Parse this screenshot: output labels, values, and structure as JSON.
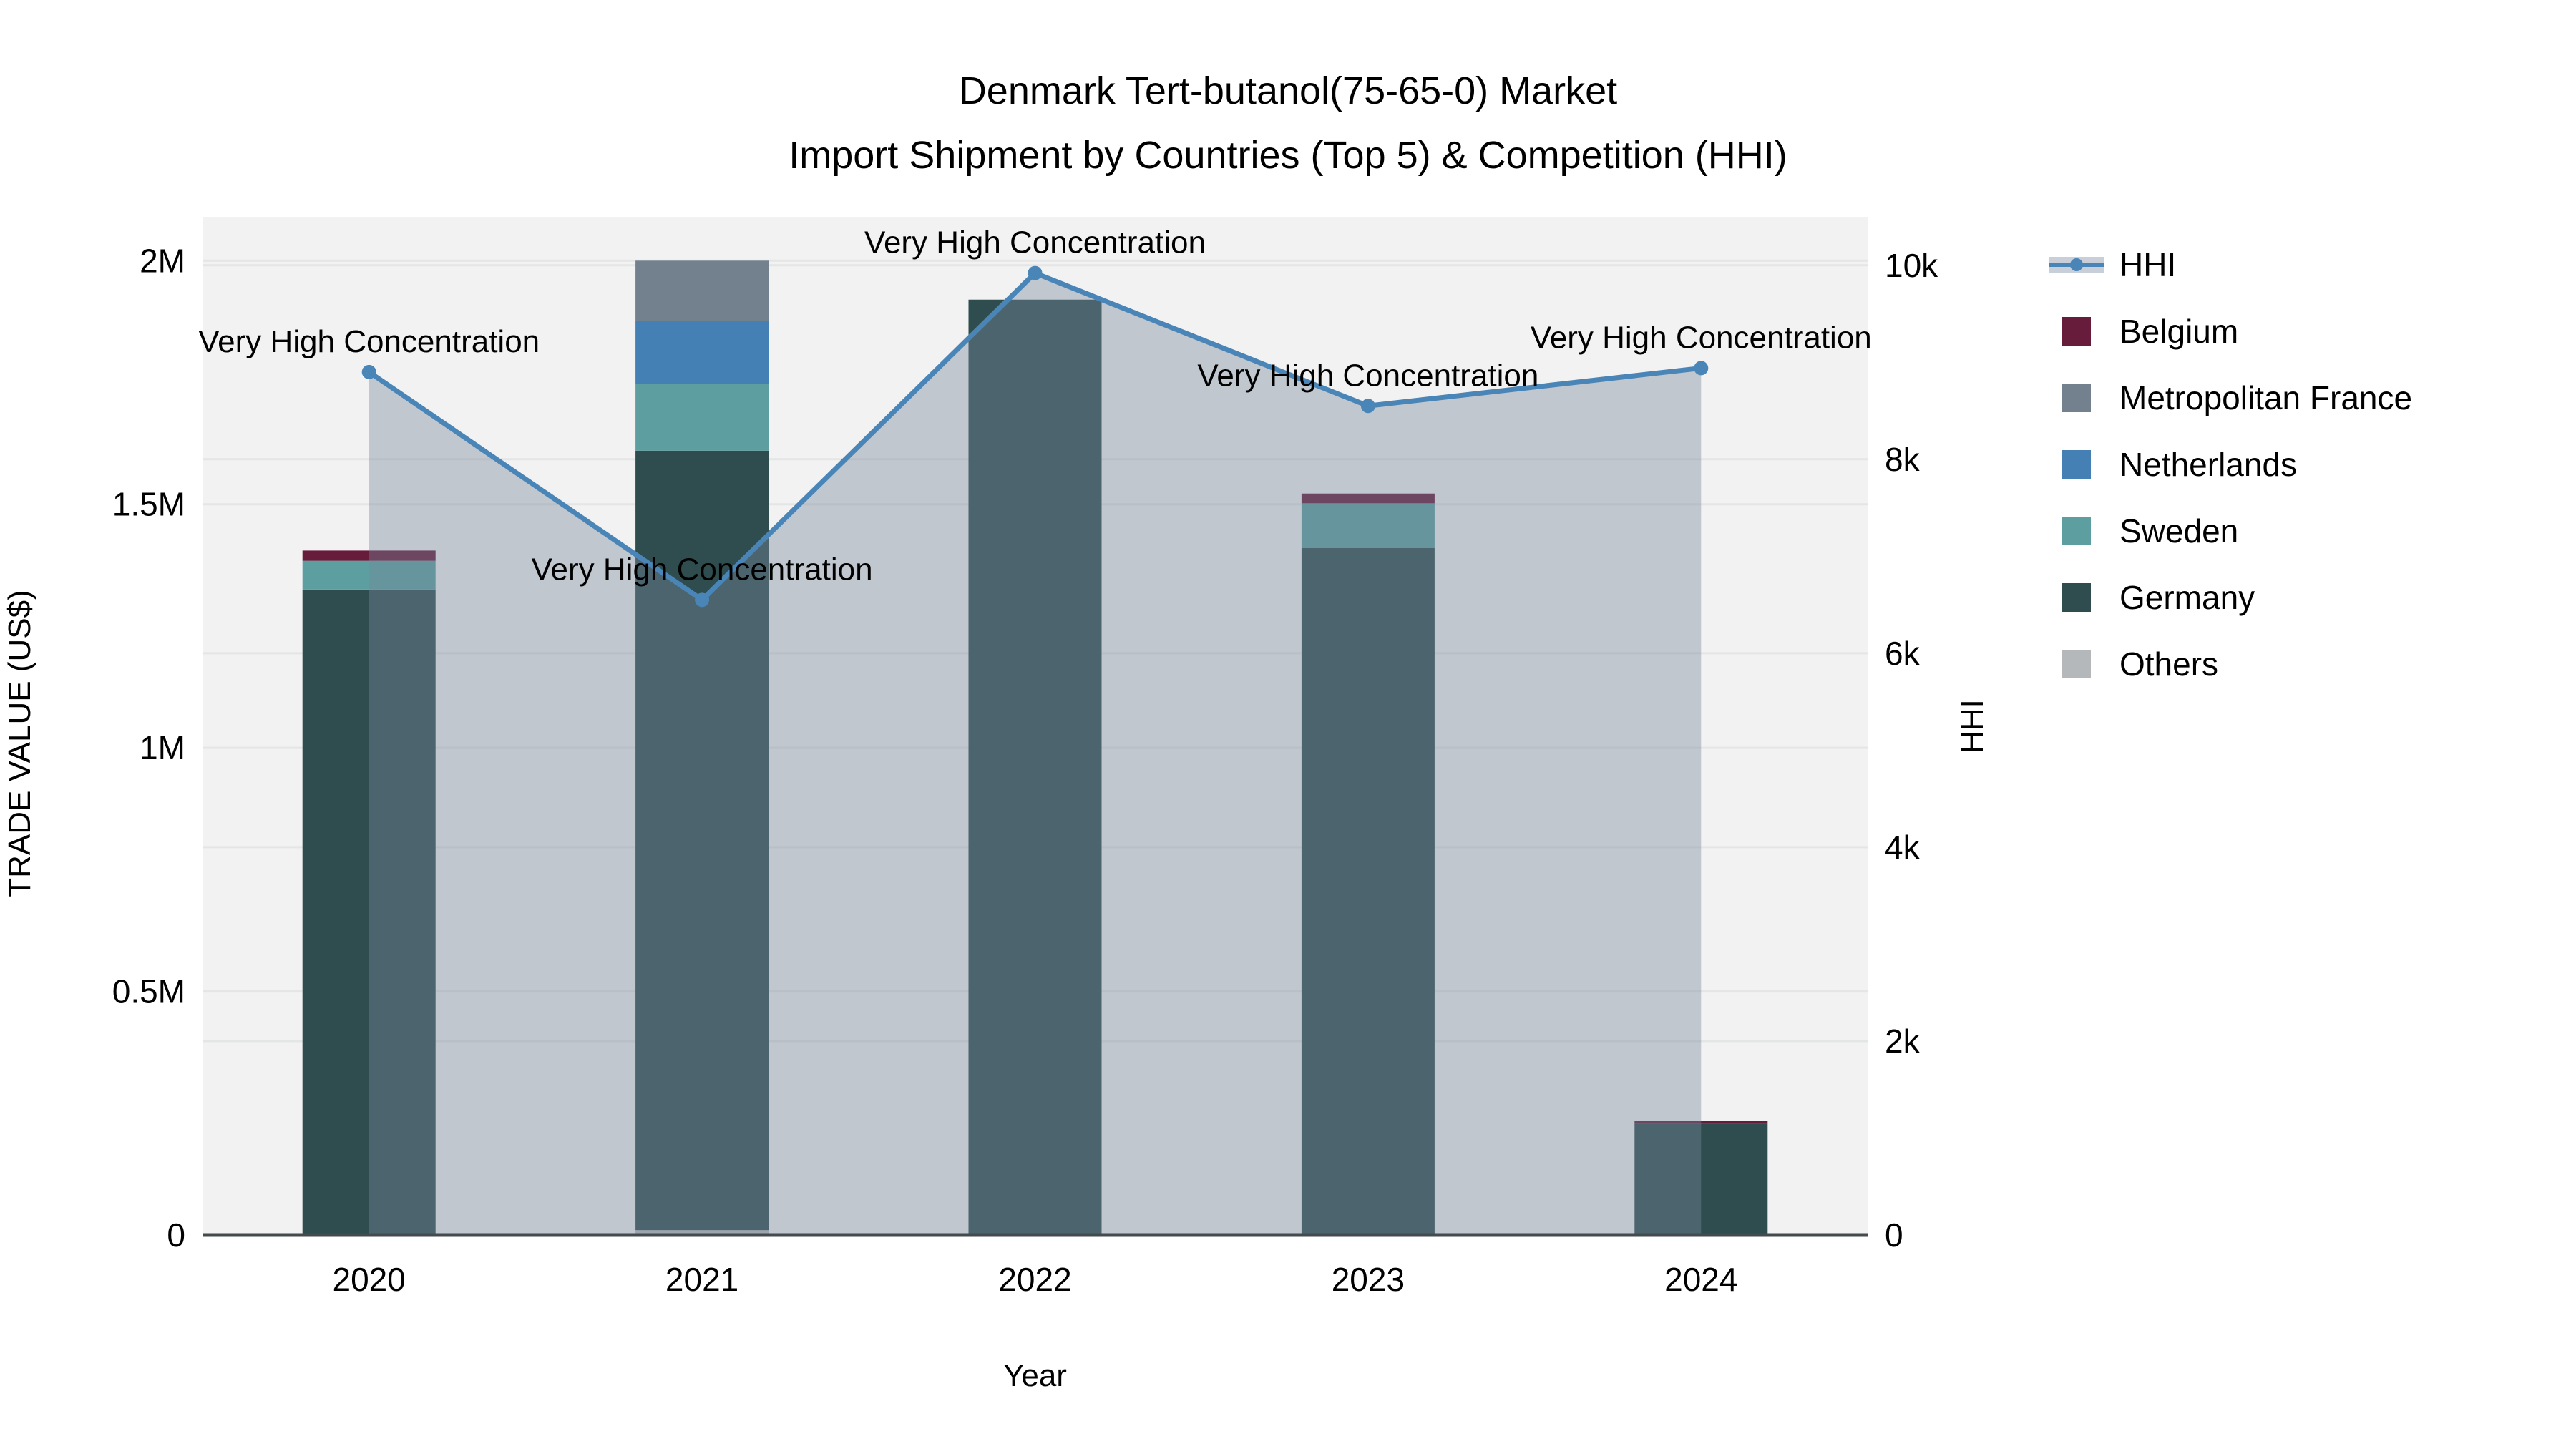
{
  "chart_data": {
    "type": "bar+line",
    "title_line1": "Denmark Tert-butanol(75-65-0) Market",
    "title_line2": "Import Shipment by Countries (Top 5) & Competition (HHI)",
    "xlabel": "Year",
    "ylabel_left": "TRADE VALUE (US$)",
    "ylabel_right": "HHI",
    "categories": [
      "2020",
      "2021",
      "2022",
      "2023",
      "2024"
    ],
    "bar_series": [
      {
        "name": "Others",
        "color": "#b5b8ba",
        "values": [
          0,
          10000,
          0,
          0,
          0
        ]
      },
      {
        "name": "Germany",
        "color": "#2f4d4f",
        "values": [
          1325000,
          1600000,
          1920000,
          1410000,
          228000
        ]
      },
      {
        "name": "Sweden",
        "color": "#5d9fa1",
        "values": [
          59000,
          137000,
          0,
          92000,
          0
        ]
      },
      {
        "name": "Netherlands",
        "color": "#4480b4",
        "values": [
          0,
          130000,
          0,
          0,
          0
        ]
      },
      {
        "name": "Metropolitan France",
        "color": "#73818f",
        "values": [
          0,
          123000,
          0,
          0,
          0
        ]
      },
      {
        "name": "Belgium",
        "color": "#671c3c",
        "values": [
          21000,
          0,
          0,
          20000,
          6000
        ]
      }
    ],
    "line_series": {
      "name": "HHI",
      "color": "#4a85b8",
      "fill_color": "rgba(119,134,155,0.40)",
      "values": [
        8900,
        6550,
        9920,
        8550,
        8940
      ]
    },
    "annotations": [
      {
        "category": "2020",
        "text": "Very High Concentration"
      },
      {
        "category": "2021",
        "text": "Very High Concentration"
      },
      {
        "category": "2022",
        "text": "Very High Concentration"
      },
      {
        "category": "2023",
        "text": "Very High Concentration"
      },
      {
        "category": "2024",
        "text": "Very High Concentration"
      }
    ],
    "left_axis": {
      "tick_labels": [
        "0",
        "0.5M",
        "1M",
        "1.5M",
        "2M"
      ],
      "tick_values": [
        0,
        500000,
        1000000,
        1500000,
        2000000
      ],
      "range": [
        0,
        2090000
      ]
    },
    "right_axis": {
      "tick_labels": [
        "0",
        "2k",
        "4k",
        "6k",
        "8k",
        "10k"
      ],
      "tick_values": [
        0,
        2000,
        4000,
        6000,
        8000,
        10000
      ],
      "range": [
        0,
        10500
      ]
    },
    "legend": [
      {
        "label": "HHI",
        "type": "line",
        "color": "#4a85b8",
        "band_color": "#c9cfd8"
      },
      {
        "label": "Belgium",
        "type": "square",
        "color": "#671c3c"
      },
      {
        "label": "Metropolitan France",
        "type": "square",
        "color": "#73818f"
      },
      {
        "label": "Netherlands",
        "type": "square",
        "color": "#4480b4"
      },
      {
        "label": "Sweden",
        "type": "square",
        "color": "#5d9fa1"
      },
      {
        "label": "Germany",
        "type": "square",
        "color": "#2f4d4f"
      },
      {
        "label": "Others",
        "type": "square",
        "color": "#b5b8ba"
      }
    ],
    "colors": {
      "plot_background": "#f2f2f2",
      "gridline": "#e4e5e5",
      "axis_line": "#444b4e",
      "text": "#000000"
    },
    "grid": true,
    "legend_position": "right"
  }
}
